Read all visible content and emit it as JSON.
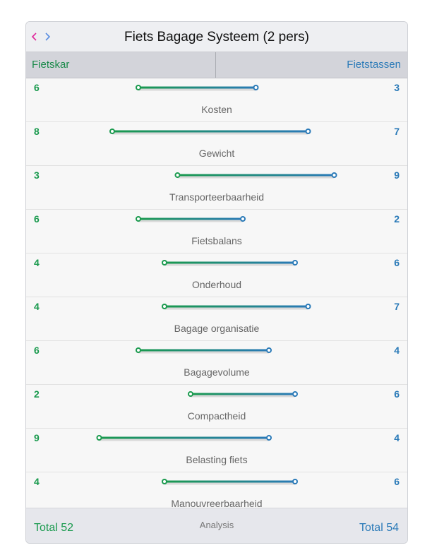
{
  "header": {
    "title": "Fiets Bagage Systeem (2 pers)",
    "swap_icon": "swap-arrows-icon"
  },
  "segments": {
    "left_label": "Fietskar",
    "right_label": "Fietstassen"
  },
  "colors": {
    "left": "#1a9a4e",
    "right": "#2a7ab8"
  },
  "rows": [
    {
      "label": "Kosten",
      "left": 6,
      "right": 3
    },
    {
      "label": "Gewicht",
      "left": 8,
      "right": 7
    },
    {
      "label": "Transporteerbaarheid",
      "left": 3,
      "right": 9
    },
    {
      "label": "Fietsbalans",
      "left": 6,
      "right": 2
    },
    {
      "label": "Onderhoud",
      "left": 4,
      "right": 6
    },
    {
      "label": "Bagage organisatie",
      "left": 4,
      "right": 7
    },
    {
      "label": "Bagagevolume",
      "left": 6,
      "right": 4
    },
    {
      "label": "Compactheid",
      "left": 2,
      "right": 6
    },
    {
      "label": "Belasting fiets",
      "left": 9,
      "right": 4
    },
    {
      "label": "Manouvreerbaarheid",
      "left": 4,
      "right": 6
    }
  ],
  "footer": {
    "total_left": "Total 52",
    "analysis_label": "Analysis",
    "total_right": "Total 54"
  }
}
